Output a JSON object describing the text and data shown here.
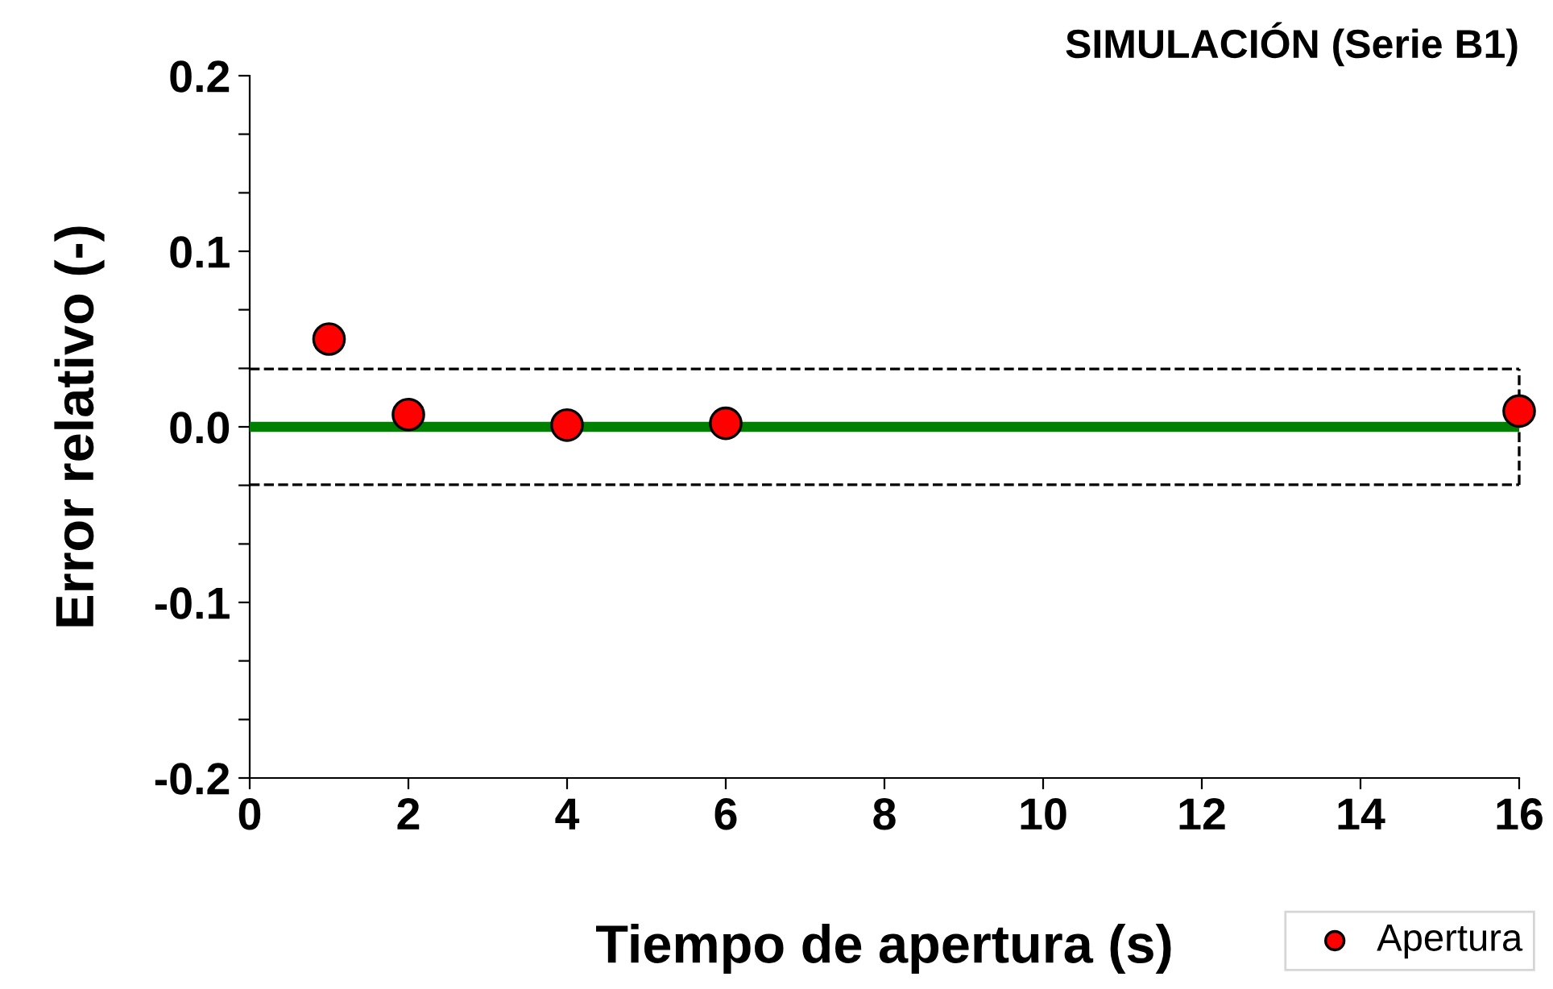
{
  "chart_data": {
    "type": "scatter",
    "title": "SIMULACIÓN (Serie B1)",
    "xlabel": "Tiempo de apertura (s)",
    "ylabel": "Error relativo (-)",
    "x": [
      1,
      2,
      4,
      6,
      16
    ],
    "series": [
      {
        "name": "Apertura",
        "color": "#ff0000",
        "values": [
          0.05,
          0.007,
          0.001,
          0.002,
          0.009
        ]
      }
    ],
    "xlim": [
      0,
      16
    ],
    "xticks": [
      0,
      2,
      4,
      6,
      8,
      10,
      12,
      14,
      16
    ],
    "ylim": [
      -0.2,
      0.2
    ],
    "yticks": [
      -0.2,
      {
        "value": -0.1667,
        "label": null
      },
      {
        "value": -0.1333,
        "label": null
      },
      -0.1,
      {
        "value": -0.0667,
        "label": null
      },
      {
        "value": -0.0333,
        "label": null
      },
      {
        "value": 0,
        "label": "0.0"
      },
      {
        "value": 0.0333,
        "label": null
      },
      {
        "value": 0.0667,
        "label": null
      },
      0.1,
      {
        "value": 0.1333,
        "label": null
      },
      {
        "value": 0.1667,
        "label": null
      },
      0.2
    ],
    "ref_lines": [
      {
        "axis": "y",
        "value": 0,
        "color": "#008000",
        "line_style": "solid"
      },
      {
        "axis": "y",
        "value": 0.033,
        "color": "#000000",
        "line_style": "dashed"
      },
      {
        "axis": "y",
        "value": -0.033,
        "color": "#000000",
        "line_style": "dashed"
      }
    ],
    "marker": "circle",
    "grid": false,
    "legend": "bottom right"
  }
}
